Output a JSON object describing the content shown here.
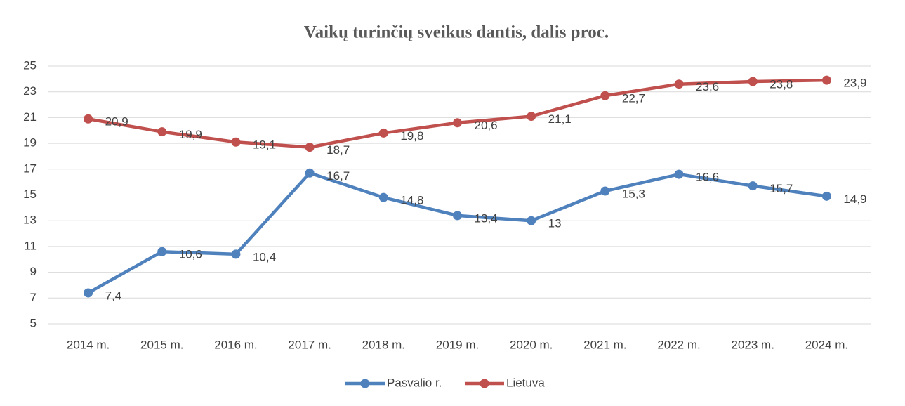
{
  "chart_data": {
    "type": "line",
    "title": "Vaikų turinčių sveikus dantis, dalis proc.",
    "categories": [
      "2014 m.",
      "2015 m.",
      "2016 m.",
      "2017 m.",
      "2018 m.",
      "2019 m.",
      "2020 m.",
      "2021 m.",
      "2022 m.",
      "2023 m.",
      "2024 m."
    ],
    "series": [
      {
        "name": "Pasvalio r.",
        "color": "#4f81bd",
        "values": [
          7.4,
          10.6,
          10.4,
          16.7,
          14.8,
          13.4,
          13,
          15.3,
          16.6,
          15.7,
          14.9
        ],
        "value_labels": [
          "7,4",
          "10,6",
          "10,4",
          "16,7",
          "14,8",
          "13,4",
          "13",
          "15,3",
          "16,6",
          "15,7",
          "14,9"
        ]
      },
      {
        "name": "Lietuva",
        "color": "#c0504d",
        "values": [
          20.9,
          19.9,
          19.1,
          18.7,
          19.8,
          20.6,
          21.1,
          22.7,
          23.6,
          23.8,
          23.9
        ],
        "value_labels": [
          "20,9",
          "19,9",
          "19,1",
          "18,7",
          "19,8",
          "20,6",
          "21,1",
          "22,7",
          "23,6",
          "23,8",
          "23,9"
        ]
      }
    ],
    "ylim": [
      5,
      25
    ],
    "yticks": [
      5,
      7,
      9,
      11,
      13,
      15,
      17,
      19,
      21,
      23,
      25
    ],
    "grid": true,
    "legend": "bottom"
  }
}
